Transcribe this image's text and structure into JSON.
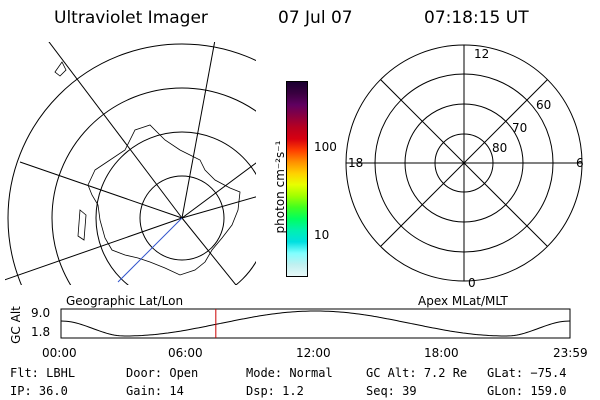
{
  "header": {
    "title": "Ultraviolet Imager",
    "date": "07 Jul 07",
    "time": "07:18:15 UT"
  },
  "geo_map": {
    "caption": "Geographic Lat/Lon"
  },
  "polar_map": {
    "caption": "Apex MLat/MLT",
    "mlt_labels": {
      "top": "12",
      "bottom": "0",
      "left": "18",
      "right": "6"
    },
    "mlat_labels": [
      "60",
      "70",
      "80"
    ]
  },
  "colorbar": {
    "unit_label": "photon cm⁻²s⁻¹",
    "ticks": [
      "100",
      "10"
    ],
    "colors": [
      "#1a0030",
      "#3a0040",
      "#600060",
      "#8a0040",
      "#b80020",
      "#d80010",
      "#ff4000",
      "#ff9000",
      "#ffd000",
      "#e8ff00",
      "#a0ff00",
      "#40ff20",
      "#00ff60",
      "#00f0b0",
      "#00e0e0",
      "#80ffff",
      "#c0f0f0",
      "#e8f8f8"
    ]
  },
  "altitude_plot": {
    "ylabel": "GC Alt",
    "yticks": [
      "9.0",
      "1.8"
    ],
    "xticks": [
      "00:00",
      "06:00",
      "12:00",
      "18:00",
      "23:59"
    ],
    "marker_color": "#cc0000",
    "curve_color": "#000000",
    "marker_time_hours": 7.3
  },
  "footer": {
    "row1": [
      {
        "label": "Flt:",
        "value": "LBHL"
      },
      {
        "label": "Door:",
        "value": "Open"
      },
      {
        "label": "Mode:",
        "value": "Normal"
      },
      {
        "label": "GC Alt:",
        "value": "7.2 Re"
      },
      {
        "label": "GLat:",
        "value": "−75.4"
      }
    ],
    "row2": [
      {
        "label": "IP:",
        "value": "36.0"
      },
      {
        "label": "Gain:",
        "value": "14"
      },
      {
        "label": "Dsp:",
        "value": "1.2"
      },
      {
        "label": "Seq:",
        "value": "39"
      },
      {
        "label": "GLon:",
        "value": "159.0"
      }
    ]
  }
}
